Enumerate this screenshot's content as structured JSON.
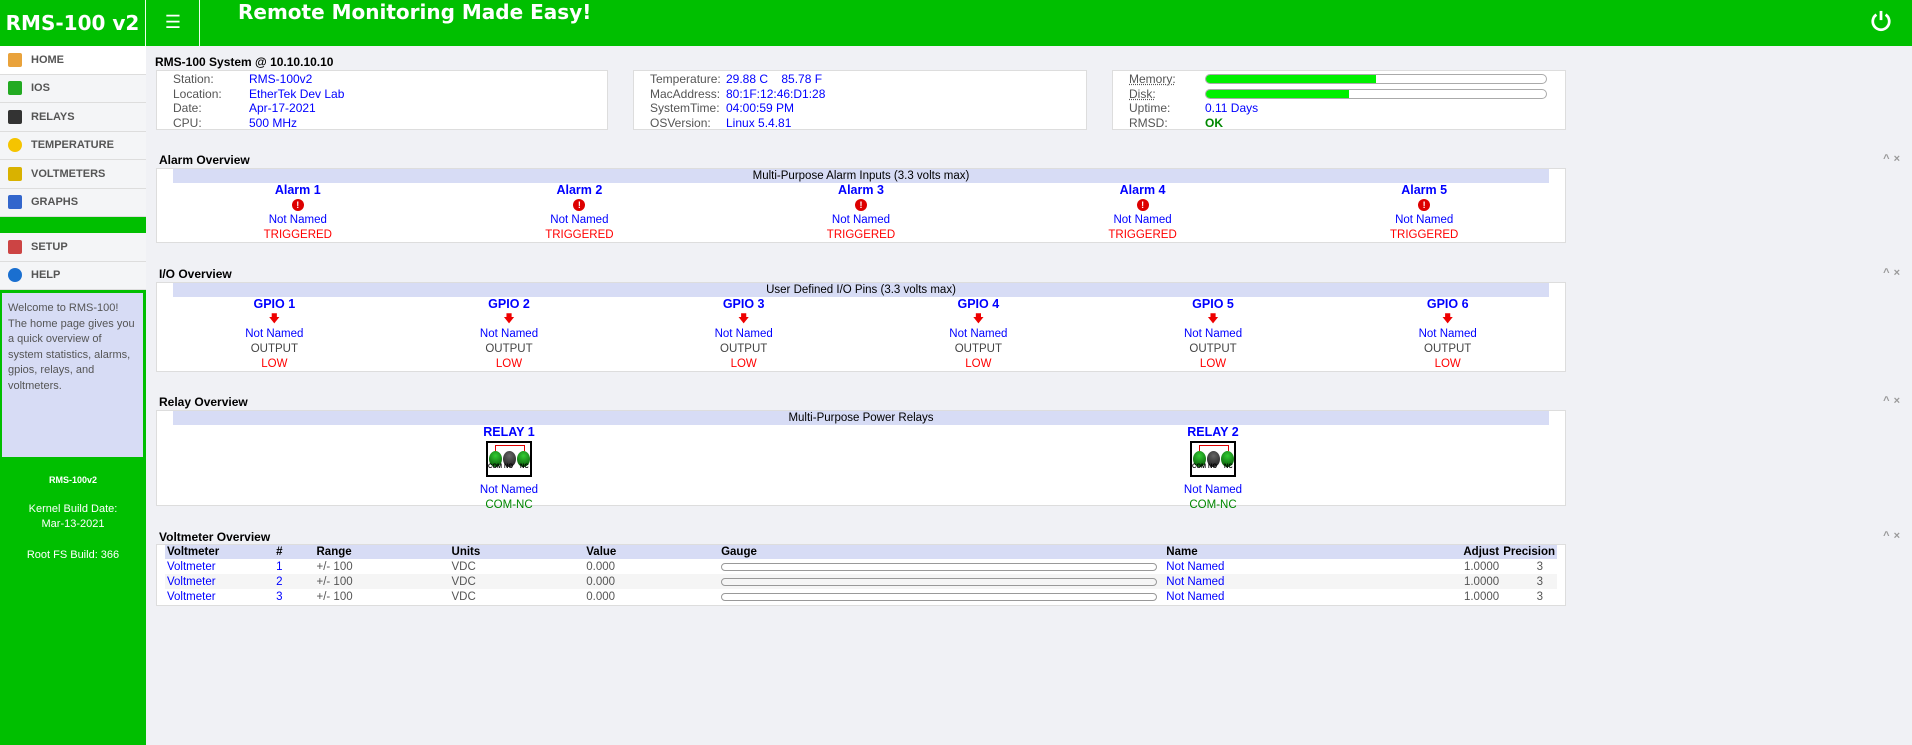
{
  "header": {
    "logo": "RMS-100 v2",
    "menu_icon": "hamburger-icon",
    "tagline": "Remote Monitoring Made Easy!",
    "power_icon": "power-icon"
  },
  "sidebar": {
    "items": [
      {
        "label": "HOME",
        "icon": "house-icon",
        "active": true
      },
      {
        "label": "IOS",
        "icon": "arrows-icon"
      },
      {
        "label": "RELAYS",
        "icon": "relay-icon"
      },
      {
        "label": "TEMPERATURE",
        "icon": "sun-icon"
      },
      {
        "label": "VOLTMETERS",
        "icon": "battery-icon"
      },
      {
        "label": "GRAPHS",
        "icon": "chart-icon"
      },
      {
        "label": "SETUP",
        "icon": "wrench-icon"
      },
      {
        "label": "HELP",
        "icon": "help-icon"
      }
    ],
    "welcome": "Welcome to RMS-100! The home page gives you a quick overview of system statistics, alarms, gpios, relays, and voltmeters.",
    "device": "RMS-100v2",
    "kernel_label": "Kernel Build Date:",
    "kernel_date": "Mar-13-2021",
    "rootfs": "Root FS Build: 366"
  },
  "system": {
    "title": "RMS-100 System @ 10.10.10.10",
    "box1": [
      {
        "k": "Station:",
        "v": "RMS-100v2"
      },
      {
        "k": "Location:",
        "v": "EtherTek Dev Lab"
      },
      {
        "k": "Date:",
        "v": "Apr-17-2021"
      },
      {
        "k": "CPU:",
        "v": "500 MHz"
      }
    ],
    "box2": [
      {
        "k": "Temperature:",
        "v": "29.88 C    85.78 F"
      },
      {
        "k": "MacAddress:",
        "v": "80:1F:12:46:D1:28"
      },
      {
        "k": "SystemTime:",
        "v": "04:00:59 PM"
      },
      {
        "k": "OSVersion:",
        "v": "Linux 5.4.81"
      }
    ],
    "memory_label": "Memory:",
    "memory_pct": 50,
    "disk_label": "Disk:",
    "disk_pct": 42,
    "uptime_label": "Uptime:",
    "uptime": "0.11 Days",
    "rmsd_label": "RMSD:",
    "rmsd": "OK"
  },
  "alarms": {
    "title": "Alarm Overview",
    "band": "Multi-Purpose Alarm Inputs (3.3 volts max)",
    "items": [
      {
        "name": "Alarm 1",
        "label": "Not Named",
        "state": "TRIGGERED"
      },
      {
        "name": "Alarm 2",
        "label": "Not Named",
        "state": "TRIGGERED"
      },
      {
        "name": "Alarm 3",
        "label": "Not Named",
        "state": "TRIGGERED"
      },
      {
        "name": "Alarm 4",
        "label": "Not Named",
        "state": "TRIGGERED"
      },
      {
        "name": "Alarm 5",
        "label": "Not Named",
        "state": "TRIGGERED"
      }
    ]
  },
  "io": {
    "title": "I/O Overview",
    "band": "User Defined I/O Pins (3.3 volts max)",
    "items": [
      {
        "name": "GPIO 1",
        "label": "Not Named",
        "mode": "OUTPUT",
        "state": "LOW"
      },
      {
        "name": "GPIO 2",
        "label": "Not Named",
        "mode": "OUTPUT",
        "state": "LOW"
      },
      {
        "name": "GPIO 3",
        "label": "Not Named",
        "mode": "OUTPUT",
        "state": "LOW"
      },
      {
        "name": "GPIO 4",
        "label": "Not Named",
        "mode": "OUTPUT",
        "state": "LOW"
      },
      {
        "name": "GPIO 5",
        "label": "Not Named",
        "mode": "OUTPUT",
        "state": "LOW"
      },
      {
        "name": "GPIO 6",
        "label": "Not Named",
        "mode": "OUTPUT",
        "state": "LOW"
      }
    ]
  },
  "relays": {
    "title": "Relay Overview",
    "band": "Multi-Purpose Power Relays",
    "terminals": [
      "COM",
      "NO",
      "NC"
    ],
    "items": [
      {
        "name": "RELAY 1",
        "label": "Not Named",
        "state": "COM-NC"
      },
      {
        "name": "RELAY 2",
        "label": "Not Named",
        "state": "COM-NC"
      }
    ]
  },
  "voltmeters": {
    "title": "Voltmeter Overview",
    "headers": [
      "Voltmeter",
      "#",
      "Range",
      "Units",
      "Value",
      "Gauge",
      "Name",
      "Adjust",
      "Precision"
    ],
    "rows": [
      {
        "name": "Voltmeter",
        "num": "1",
        "range": "+/- 100",
        "units": "VDC",
        "value": "0.000",
        "label": "Not Named",
        "adjust": "1.0000",
        "precision": "3"
      },
      {
        "name": "Voltmeter",
        "num": "2",
        "range": "+/- 100",
        "units": "VDC",
        "value": "0.000",
        "label": "Not Named",
        "adjust": "1.0000",
        "precision": "3"
      },
      {
        "name": "Voltmeter",
        "num": "3",
        "range": "+/- 100",
        "units": "VDC",
        "value": "0.000",
        "label": "Not Named",
        "adjust": "1.0000",
        "precision": "3"
      }
    ]
  },
  "panel_controls": {
    "collapse": "^",
    "close": "×"
  }
}
